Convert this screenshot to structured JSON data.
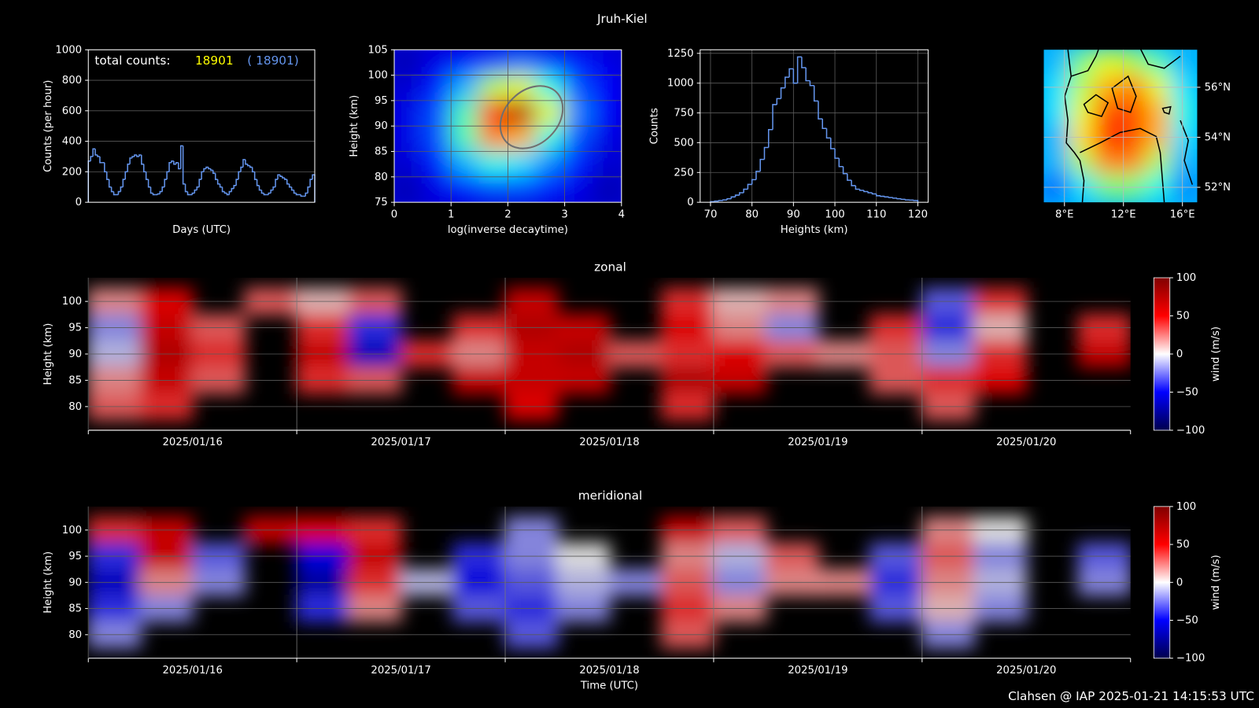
{
  "title": "Jruh-Kiel",
  "footer": "Clahsen @ IAP 2025-01-21 14:15:53 UTC",
  "chart_data": [
    {
      "type": "line",
      "step": true,
      "xlabel": "Days (UTC)",
      "ylabel": "Counts (per hour)",
      "color": "#6495ed",
      "annotations": [
        "total counts:",
        "18901",
        "( 18901)"
      ],
      "annotation_colors": [
        "#ffffff",
        "#ffff00",
        "#6495ed"
      ],
      "values": [
        270,
        300,
        350,
        310,
        300,
        260,
        260,
        200,
        150,
        100,
        70,
        50,
        50,
        70,
        100,
        150,
        200,
        250,
        290,
        300,
        310,
        300,
        310,
        250,
        200,
        150,
        100,
        60,
        50,
        50,
        55,
        70,
        100,
        150,
        200,
        260,
        270,
        250,
        260,
        220,
        370,
        120,
        70,
        50,
        50,
        60,
        80,
        100,
        150,
        200,
        220,
        230,
        220,
        210,
        190,
        150,
        120,
        100,
        70,
        60,
        50,
        70,
        90,
        110,
        150,
        200,
        230,
        280,
        250,
        240,
        230,
        200,
        150,
        110,
        80,
        60,
        50,
        50,
        60,
        80,
        100,
        150,
        180,
        170,
        160,
        150,
        120,
        100,
        80,
        60,
        50,
        50,
        40,
        40,
        60,
        100,
        150,
        180
      ],
      "xlim": [
        0,
        98
      ],
      "ylim": [
        0,
        1000
      ],
      "yticks": [
        0,
        200,
        400,
        600,
        800,
        1000
      ],
      "grid": true
    },
    {
      "type": "heatmap",
      "colormap": "jet",
      "xlabel": "log(inverse decaytime)",
      "ylabel": "Height (km)",
      "x": [
        0.25,
        0.75,
        1.25,
        1.75,
        2.25,
        2.75,
        3.25,
        3.75
      ],
      "y": [
        102.5,
        97.5,
        92.5,
        87.5,
        82.5,
        77.5
      ],
      "z": [
        [
          0.05,
          0.1,
          0.15,
          0.2,
          0.25,
          0.2,
          0.15,
          0.1
        ],
        [
          0.08,
          0.15,
          0.3,
          0.55,
          0.6,
          0.4,
          0.2,
          0.12
        ],
        [
          0.1,
          0.2,
          0.45,
          0.85,
          0.95,
          0.6,
          0.25,
          0.12
        ],
        [
          0.1,
          0.2,
          0.45,
          0.75,
          0.7,
          0.4,
          0.2,
          0.1
        ],
        [
          0.08,
          0.15,
          0.3,
          0.4,
          0.35,
          0.25,
          0.15,
          0.08
        ],
        [
          0.05,
          0.1,
          0.15,
          0.2,
          0.2,
          0.15,
          0.1,
          0.05
        ]
      ],
      "xlim": [
        0,
        4
      ],
      "xticks": [
        0,
        1,
        2,
        3,
        4
      ],
      "ylim": [
        75,
        105
      ],
      "yticks": [
        75,
        80,
        85,
        90,
        95,
        100,
        105
      ],
      "grid": true
    },
    {
      "type": "histogram",
      "xlabel": "Heights (km)",
      "ylabel": "Counts",
      "color": "#6495ed",
      "bins": [
        70,
        71,
        72,
        73,
        74,
        75,
        76,
        77,
        78,
        79,
        80,
        81,
        82,
        83,
        84,
        85,
        86,
        87,
        88,
        89,
        90,
        91,
        92,
        93,
        94,
        95,
        96,
        97,
        98,
        99,
        100,
        101,
        102,
        103,
        104,
        105,
        106,
        107,
        108,
        109,
        110,
        111,
        112,
        113,
        114,
        115,
        116,
        117,
        118,
        119,
        120
      ],
      "values": [
        5,
        10,
        15,
        20,
        30,
        45,
        60,
        80,
        110,
        150,
        190,
        260,
        360,
        460,
        610,
        820,
        870,
        960,
        1050,
        1120,
        1000,
        1220,
        1130,
        1020,
        980,
        850,
        700,
        620,
        540,
        450,
        370,
        300,
        240,
        185,
        140,
        110,
        100,
        90,
        80,
        70,
        55,
        50,
        45,
        40,
        35,
        30,
        25,
        20,
        18,
        15
      ],
      "xlim": [
        67.5,
        122.5
      ],
      "xticks": [
        70,
        80,
        90,
        100,
        110,
        120
      ],
      "ylim": [
        0,
        1280
      ],
      "yticks": [
        0,
        250,
        500,
        750,
        1000,
        1250
      ],
      "grid": true
    },
    {
      "type": "map",
      "colormap": "jet",
      "yaxis_side": "right",
      "x": [
        7.5,
        9.2,
        10.9,
        12.7,
        14.4,
        16.1
      ],
      "y": [
        57,
        56,
        55,
        54,
        53,
        52
      ],
      "z": [
        [
          0.3,
          0.5,
          0.6,
          0.55,
          0.45,
          0.3
        ],
        [
          0.35,
          0.55,
          0.7,
          0.75,
          0.6,
          0.35
        ],
        [
          0.35,
          0.6,
          0.8,
          0.8,
          0.7,
          0.4
        ],
        [
          0.3,
          0.65,
          0.85,
          0.8,
          0.7,
          0.35
        ],
        [
          0.3,
          0.55,
          0.75,
          0.75,
          0.55,
          0.3
        ],
        [
          0.2,
          0.35,
          0.5,
          0.5,
          0.4,
          0.25
        ]
      ],
      "xlim": [
        6.6,
        17
      ],
      "xticks": [
        {
          "value": 8,
          "label": "8°E"
        },
        {
          "value": 12,
          "label": "12°E"
        },
        {
          "value": 16,
          "label": "16°E"
        }
      ],
      "ylim": [
        51.4,
        57.5
      ],
      "yticks": [
        {
          "value": 52,
          "label": "52°N"
        },
        {
          "value": 54,
          "label": "54°N"
        },
        {
          "value": 56,
          "label": "56°N"
        }
      ],
      "grid": true
    },
    {
      "type": "heatmap",
      "colormap": "seismic",
      "title": "zonal",
      "ylabel": "Height (km)",
      "colorbar_label": "wind (m/s)",
      "xtick_label_position": "between",
      "x": [
        0.125,
        0.375,
        0.625,
        0.875,
        1.125,
        1.375,
        1.625,
        1.875,
        2.125,
        2.375,
        2.625,
        2.875,
        3.125,
        3.375,
        3.625,
        3.875,
        4.125,
        4.375,
        4.625,
        4.875
      ],
      "y": [
        100,
        95,
        90,
        85,
        80
      ],
      "z": [
        [
          20,
          50,
          null,
          30,
          10,
          30,
          null,
          null,
          60,
          null,
          null,
          40,
          10,
          20,
          null,
          null,
          -30,
          40,
          null,
          null
        ],
        [
          -20,
          60,
          30,
          null,
          40,
          -40,
          null,
          40,
          70,
          60,
          null,
          50,
          20,
          -20,
          null,
          40,
          -40,
          10,
          null,
          40
        ],
        [
          -10,
          70,
          40,
          null,
          60,
          -60,
          40,
          20,
          60,
          70,
          30,
          40,
          50,
          30,
          20,
          30,
          -20,
          40,
          null,
          60
        ],
        [
          20,
          60,
          30,
          null,
          40,
          30,
          null,
          60,
          60,
          60,
          null,
          70,
          60,
          null,
          null,
          30,
          40,
          50,
          null,
          null
        ],
        [
          30,
          40,
          null,
          null,
          null,
          null,
          null,
          null,
          50,
          null,
          null,
          40,
          null,
          null,
          null,
          null,
          30,
          null,
          null,
          null
        ]
      ],
      "xlim": [
        0,
        5
      ],
      "xticks": [
        {
          "value": 0,
          "label": "2025/01/16"
        },
        {
          "value": 1,
          "label": "2025/01/17"
        },
        {
          "value": 2,
          "label": "2025/01/18"
        },
        {
          "value": 3,
          "label": "2025/01/19"
        },
        {
          "value": 4,
          "label": "2025/01/20"
        }
      ],
      "ylim": [
        75.5,
        104.5
      ],
      "yticks": [
        80,
        85,
        90,
        95,
        100
      ],
      "zlim": [
        -100,
        100
      ],
      "zticks": [
        {
          "value": -100,
          "label": "−100"
        },
        {
          "value": -50,
          "label": "−50"
        },
        0,
        50,
        100
      ],
      "grid": true
    },
    {
      "type": "heatmap",
      "colormap": "seismic",
      "title": "meridional",
      "xlabel": "Time (UTC)",
      "ylabel": "Height (km)",
      "colorbar_label": "wind (m/s)",
      "xtick_label_position": "between",
      "x": [
        0.125,
        0.375,
        0.625,
        0.875,
        1.125,
        1.375,
        1.625,
        1.875,
        2.125,
        2.375,
        2.625,
        2.875,
        3.125,
        3.375,
        3.625,
        3.875,
        4.125,
        4.375,
        4.625,
        4.875
      ],
      "y": [
        100,
        95,
        90,
        85,
        80
      ],
      "z": [
        [
          40,
          60,
          null,
          60,
          50,
          40,
          null,
          null,
          -20,
          null,
          null,
          60,
          30,
          null,
          null,
          null,
          20,
          0,
          null,
          null
        ],
        [
          -40,
          60,
          -30,
          null,
          -50,
          60,
          null,
          -40,
          -20,
          0,
          null,
          20,
          -10,
          30,
          null,
          -30,
          30,
          -20,
          null,
          -30
        ],
        [
          -60,
          20,
          -20,
          null,
          -70,
          40,
          -10,
          -50,
          -30,
          -10,
          -20,
          30,
          -20,
          20,
          20,
          -40,
          20,
          -10,
          null,
          -20
        ],
        [
          -40,
          -20,
          null,
          null,
          -40,
          20,
          null,
          -30,
          -40,
          -20,
          null,
          40,
          20,
          null,
          null,
          -30,
          10,
          -20,
          null,
          null
        ],
        [
          -20,
          null,
          null,
          null,
          null,
          null,
          null,
          null,
          -30,
          null,
          null,
          30,
          null,
          null,
          null,
          null,
          -20,
          null,
          null,
          null
        ]
      ],
      "xlim": [
        0,
        5
      ],
      "xticks": [
        {
          "value": 0,
          "label": "2025/01/16"
        },
        {
          "value": 1,
          "label": "2025/01/17"
        },
        {
          "value": 2,
          "label": "2025/01/18"
        },
        {
          "value": 3,
          "label": "2025/01/19"
        },
        {
          "value": 4,
          "label": "2025/01/20"
        }
      ],
      "ylim": [
        75.5,
        104.5
      ],
      "yticks": [
        80,
        85,
        90,
        95,
        100
      ],
      "zlim": [
        -100,
        100
      ],
      "zticks": [
        {
          "value": -100,
          "label": "−100"
        },
        {
          "value": -50,
          "label": "−50"
        },
        0,
        50,
        100
      ],
      "grid": true
    }
  ]
}
